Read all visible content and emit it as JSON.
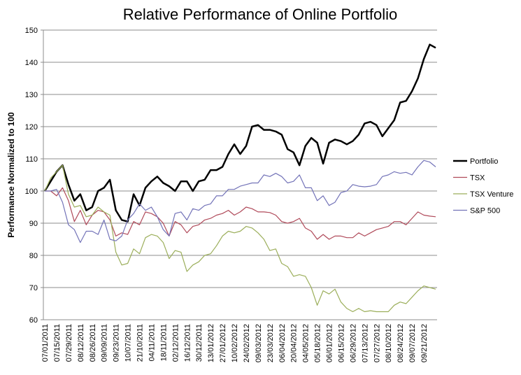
{
  "chart_data": {
    "type": "line",
    "title": "Relative Performance of Online Portfolio",
    "y_label": "Performance Normalized to 100",
    "categories": [
      "07/01/2011",
      null,
      "07/15/2011",
      null,
      "07/29/2011",
      null,
      "08/12/2011",
      null,
      "08/26/2011",
      null,
      "09/09/2011",
      null,
      "09/23/2011",
      null,
      "10/07/2011",
      null,
      "21/10/2011",
      null,
      "04/11/2011",
      null,
      "18/11/2011",
      null,
      "02/12/2011",
      null,
      "16/12/2011",
      null,
      "30/12/2011",
      null,
      "13/01/2012",
      null,
      "27/01/2012",
      null,
      "10/02/2012",
      null,
      "24/02/2012",
      null,
      "09/03/2012",
      null,
      "23/03/2012",
      null,
      "06/04/2012",
      null,
      "20/04/2012",
      null,
      "04/05/2012",
      null,
      "05/18/2012",
      null,
      "06/01/2012",
      null,
      "06/15/2012",
      null,
      "06/29/2012",
      null,
      "07/13/2012",
      null,
      "07/27/2012",
      null,
      "08/10/2012",
      null,
      "08/24/2012",
      null,
      "09/07/2012",
      null,
      "09/21/2012",
      null,
      null
    ],
    "series": [
      {
        "name": "Portfolio",
        "color": "#000000",
        "values": [
          100,
          103,
          106,
          108,
          102,
          97,
          99,
          94,
          95,
          100,
          101,
          103.5,
          94,
          91,
          90.5,
          99,
          95.5,
          101,
          103,
          104.5,
          102.5,
          101.5,
          100,
          103,
          103,
          100,
          103,
          103.5,
          106.5,
          106.5,
          107.5,
          111.5,
          114.5,
          111.5,
          114,
          120,
          120.5,
          119,
          119,
          118.5,
          117.5,
          113,
          112,
          108,
          114,
          116.5,
          115,
          108.5,
          115,
          116,
          115.5,
          114.5,
          115.5,
          117.5,
          121,
          121.5,
          120.5,
          117,
          119.5,
          122,
          127.5,
          128,
          131,
          135,
          141,
          145.5,
          144.5
        ]
      },
      {
        "name": "TSX",
        "color": "#b04a5a",
        "values": [
          100,
          100,
          98.5,
          101,
          97,
          90.5,
          94,
          89.5,
          92.5,
          94,
          93.5,
          91,
          86,
          87,
          86.5,
          90.5,
          89.5,
          93.5,
          93,
          92,
          90,
          86,
          90.5,
          89.5,
          87,
          89,
          89.5,
          91,
          91.5,
          92.5,
          93,
          94,
          92.5,
          93.5,
          95,
          94.5,
          93.5,
          93.5,
          93.3,
          92.5,
          90.5,
          90,
          90.5,
          91.5,
          88.5,
          87.5,
          85,
          86.5,
          85,
          86,
          86,
          85.5,
          85.5,
          87,
          86,
          87,
          88,
          88.5,
          89,
          90.5,
          90.5,
          89.5,
          91.5,
          93.5,
          92.5,
          92.2,
          92
        ]
      },
      {
        "name": "TSX Venture",
        "color": "#9bae5a",
        "values": [
          100,
          104,
          106,
          108,
          99,
          95,
          95.5,
          92,
          92.5,
          95,
          93.5,
          92.5,
          81,
          77,
          77.5,
          82,
          80.5,
          85.5,
          86.5,
          86,
          84,
          79,
          81.5,
          81,
          75,
          77,
          78,
          80,
          80.5,
          83,
          86,
          87.5,
          87,
          87.5,
          89,
          88.5,
          87,
          85,
          81.5,
          82,
          77.5,
          76.5,
          73.5,
          74,
          73.5,
          70,
          64.5,
          69,
          68,
          69.5,
          65.5,
          63.5,
          62.5,
          63.5,
          62.5,
          62.8,
          62.5,
          62.5,
          62.5,
          64.5,
          65.5,
          65,
          67,
          69,
          70.5,
          70,
          69.5
        ]
      },
      {
        "name": "S&P 500",
        "color": "#7373b8",
        "values": [
          100,
          100,
          100.5,
          96.5,
          89.5,
          88,
          84,
          87.5,
          87.5,
          86.5,
          91,
          85,
          84.5,
          86,
          91,
          93,
          96,
          94,
          95,
          92,
          88,
          86,
          93,
          93.5,
          91,
          94.5,
          94,
          95.5,
          96,
          98.5,
          98.5,
          100.5,
          100.5,
          101.5,
          102,
          102.5,
          102.5,
          105,
          104.5,
          105.5,
          104.5,
          102.5,
          103,
          105,
          101,
          101,
          97,
          98.5,
          95.5,
          96.5,
          99.5,
          100,
          102,
          101.5,
          101.3,
          101.5,
          102,
          104.5,
          105,
          106,
          105.5,
          105.8,
          105,
          107.5,
          109.5,
          109,
          107.5
        ]
      }
    ],
    "ylim": [
      60,
      150
    ],
    "yticks": [
      60,
      70,
      80,
      90,
      100,
      110,
      120,
      130,
      140,
      150
    ],
    "grid": true,
    "legend": "right"
  }
}
